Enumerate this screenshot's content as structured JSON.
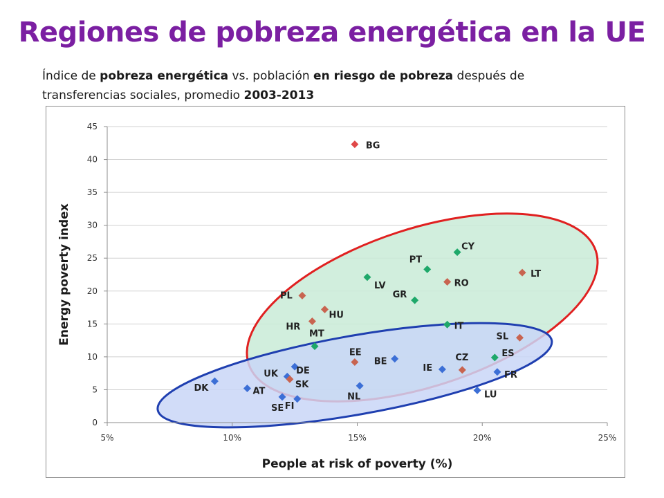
{
  "page": {
    "title": "Regiones de pobreza energética en la UE",
    "subtitle": {
      "p1": "Índice de ",
      "b1": "pobreza energética",
      "p2": " vs. población ",
      "b2": "en riesgo de pobreza",
      "p3": " después de transferencias sociales, promedio ",
      "b3": "2003-2013"
    }
  },
  "chart_data": {
    "type": "scatter",
    "xlabel": "People at risk of poverty (%)",
    "ylabel": "Energy poverty index",
    "xlim": [
      5,
      25
    ],
    "ylim": [
      0,
      45
    ],
    "x_ticks": [
      5,
      10,
      15,
      20,
      25
    ],
    "x_tick_labels": [
      "5%",
      "10%",
      "15%",
      "20%",
      "25%"
    ],
    "y_ticks": [
      0,
      5,
      10,
      15,
      20,
      25,
      30,
      35,
      40,
      45
    ],
    "y_tick_labels": [
      "0",
      "5",
      "10",
      "15",
      "20",
      "25",
      "30",
      "35",
      "40",
      "45"
    ],
    "grid": "horizontal",
    "legend": "none",
    "colors": {
      "blue": "#3c6fd6",
      "green": "#1ea86a",
      "red": "#e04848",
      "brown": "#c86450"
    },
    "series": [
      {
        "color": "blue",
        "points": [
          {
            "label": "DK",
            "x": 9.3,
            "y": 6.3
          },
          {
            "label": "AT",
            "x": 10.6,
            "y": 5.2
          },
          {
            "label": "SE",
            "x": 12.0,
            "y": 3.9
          },
          {
            "label": "FI",
            "x": 12.6,
            "y": 3.6
          },
          {
            "label": "DE",
            "x": 12.5,
            "y": 8.5
          },
          {
            "label": "UK",
            "x": 12.2,
            "y": 7.0
          },
          {
            "label": "NL",
            "x": 15.1,
            "y": 5.6
          },
          {
            "label": "BE",
            "x": 16.5,
            "y": 9.7
          },
          {
            "label": "IE",
            "x": 18.4,
            "y": 8.1
          },
          {
            "label": "LU",
            "x": 19.8,
            "y": 4.9
          },
          {
            "label": "FR",
            "x": 20.6,
            "y": 7.7
          }
        ]
      },
      {
        "color": "green",
        "points": [
          {
            "label": "MT",
            "x": 13.3,
            "y": 11.6
          },
          {
            "label": "LV",
            "x": 15.4,
            "y": 22.1
          },
          {
            "label": "GR",
            "x": 17.3,
            "y": 18.6
          },
          {
            "label": "PT",
            "x": 17.8,
            "y": 23.3
          },
          {
            "label": "CY",
            "x": 19.0,
            "y": 25.9
          },
          {
            "label": "IT",
            "x": 18.6,
            "y": 14.9
          },
          {
            "label": "ES",
            "x": 20.5,
            "y": 9.9
          }
        ]
      },
      {
        "color": "red",
        "points": [
          {
            "label": "BG",
            "x": 14.9,
            "y": 42.3
          }
        ]
      },
      {
        "color": "brown",
        "points": [
          {
            "label": "PL",
            "x": 12.8,
            "y": 19.3
          },
          {
            "label": "HU",
            "x": 13.7,
            "y": 17.2
          },
          {
            "label": "HR",
            "x": 13.2,
            "y": 15.4
          },
          {
            "label": "EE",
            "x": 14.9,
            "y": 9.2
          },
          {
            "label": "SK",
            "x": 12.3,
            "y": 6.6
          },
          {
            "label": "RO",
            "x": 18.6,
            "y": 21.4
          },
          {
            "label": "LT",
            "x": 21.6,
            "y": 22.8
          },
          {
            "label": "SL",
            "x": 21.5,
            "y": 12.9
          },
          {
            "label": "CZ",
            "x": 19.2,
            "y": 8.0
          }
        ]
      }
    ],
    "regions": [
      {
        "color_fill": "#c9ebd7",
        "color_stroke": "#e02020",
        "center": [
          17.6,
          17.5
        ],
        "rx_data": 7.3,
        "ry_data": 12.0,
        "rotate_deg": -18
      },
      {
        "color_fill": "#c9d6f7",
        "color_stroke": "#1f3fb0",
        "center": [
          14.9,
          7.2
        ],
        "rx_data": 8.0,
        "ry_data": 6.0,
        "rotate_deg": -10
      }
    ]
  }
}
